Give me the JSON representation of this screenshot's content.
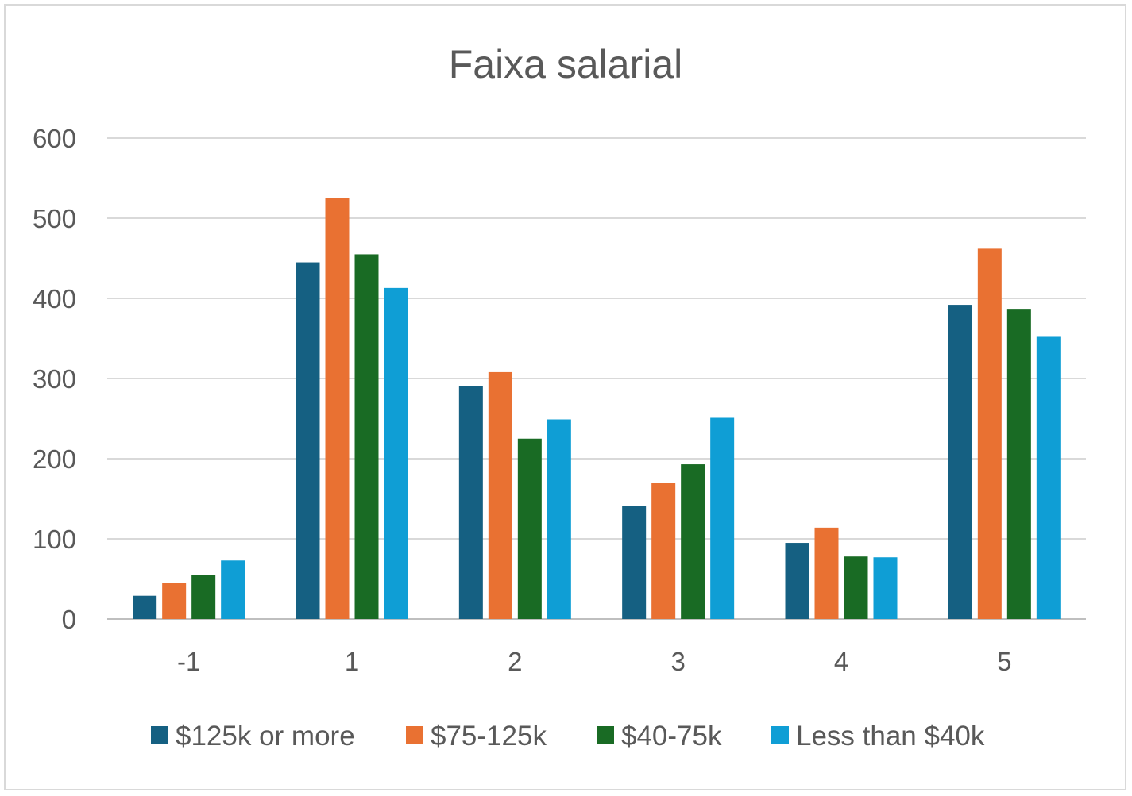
{
  "chart_data": {
    "type": "bar",
    "title": "Faixa salarial",
    "xlabel": "",
    "ylabel": "",
    "categories": [
      "-1",
      "1",
      "2",
      "3",
      "4",
      "5"
    ],
    "ylim": [
      0,
      600
    ],
    "yticks": [
      0,
      100,
      200,
      300,
      400,
      500,
      600
    ],
    "grid": true,
    "legend": "bottom",
    "series": [
      {
        "name": "$125k or more",
        "color": "#156082",
        "values": [
          29,
          445,
          291,
          141,
          95,
          392
        ]
      },
      {
        "name": "$75-125k",
        "color": "#E97132",
        "values": [
          45,
          525,
          308,
          170,
          114,
          462
        ]
      },
      {
        "name": "$40-75k",
        "color": "#196B24",
        "values": [
          55,
          455,
          225,
          193,
          78,
          387
        ]
      },
      {
        "name": "Less than $40k",
        "color": "#0F9ED5",
        "values": [
          73,
          413,
          249,
          251,
          77,
          352
        ]
      }
    ]
  }
}
